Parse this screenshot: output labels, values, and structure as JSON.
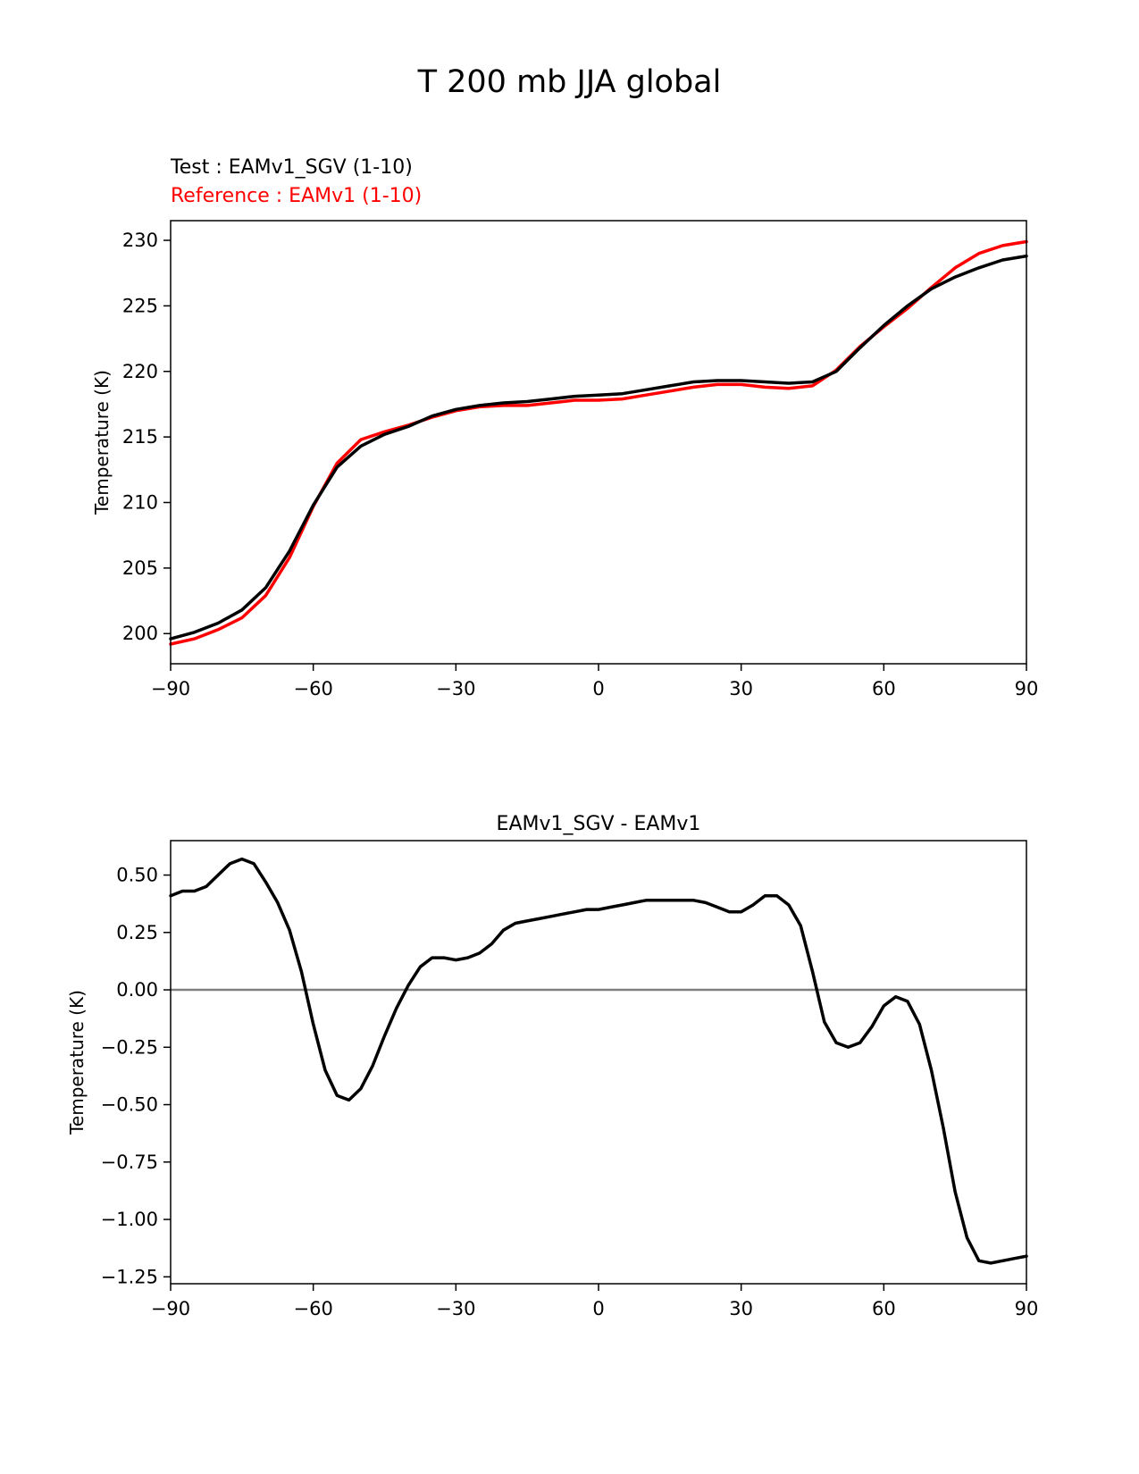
{
  "figure": {
    "title": "T 200 mb JJA global",
    "colors": {
      "test": "#000000",
      "reference": "#ff0000",
      "zero_line": "#808080",
      "axes": "#000000"
    }
  },
  "chart_data": [
    {
      "type": "line",
      "legend": {
        "test": "Test : EAMv1_SGV (1-10)",
        "reference": "Reference : EAMv1 (1-10)"
      },
      "title": "",
      "xlabel": "",
      "ylabel": "Temperature (K)",
      "xlim": [
        -90,
        90
      ],
      "ylim": [
        197.7,
        231.5
      ],
      "xticks": [
        -90,
        -60,
        -30,
        0,
        30,
        60,
        90
      ],
      "xtick_labels": [
        "−90",
        "−60",
        "−30",
        "0",
        "30",
        "60",
        "90"
      ],
      "yticks": [
        200,
        205,
        210,
        215,
        220,
        225,
        230
      ],
      "ytick_labels": [
        "200",
        "205",
        "210",
        "215",
        "220",
        "225",
        "230"
      ],
      "x": [
        -90,
        -85,
        -80,
        -75,
        -70,
        -65,
        -60,
        -55,
        -50,
        -45,
        -40,
        -35,
        -30,
        -25,
        -20,
        -15,
        -10,
        -5,
        0,
        5,
        10,
        15,
        20,
        25,
        30,
        35,
        40,
        45,
        50,
        55,
        60,
        65,
        70,
        75,
        80,
        85,
        90
      ],
      "series": [
        {
          "name": "Test : EAMv1_SGV (1-10)",
          "color": "#000000",
          "values": [
            199.6,
            200.1,
            200.8,
            201.8,
            203.5,
            206.3,
            209.8,
            212.7,
            214.3,
            215.2,
            215.8,
            216.6,
            217.1,
            217.4,
            217.6,
            217.7,
            217.9,
            218.1,
            218.2,
            218.3,
            218.6,
            218.9,
            219.2,
            219.3,
            219.3,
            219.2,
            219.1,
            219.2,
            220.0,
            221.8,
            223.5,
            225.0,
            226.3,
            227.2,
            227.9,
            228.5,
            228.8
          ]
        },
        {
          "name": "Reference : EAMv1 (1-10)",
          "color": "#ff0000",
          "values": [
            199.2,
            199.6,
            200.3,
            201.2,
            202.9,
            205.8,
            209.7,
            213.0,
            214.8,
            215.4,
            215.9,
            216.5,
            217.0,
            217.3,
            217.4,
            217.4,
            217.6,
            217.8,
            217.8,
            217.9,
            218.2,
            218.5,
            218.8,
            219.0,
            219.0,
            218.8,
            218.7,
            218.9,
            220.1,
            221.9,
            223.4,
            224.8,
            226.4,
            227.9,
            229.0,
            229.6,
            229.9
          ]
        }
      ]
    },
    {
      "type": "line",
      "title": "EAMv1_SGV - EAMv1",
      "xlabel": "",
      "ylabel": "Temperature (K)",
      "xlim": [
        -90,
        90
      ],
      "ylim": [
        -1.28,
        0.65
      ],
      "xticks": [
        -90,
        -60,
        -30,
        0,
        30,
        60,
        90
      ],
      "xtick_labels": [
        "−90",
        "−60",
        "−30",
        "0",
        "30",
        "60",
        "90"
      ],
      "yticks": [
        -1.25,
        -1.0,
        -0.75,
        -0.5,
        -0.25,
        0.0,
        0.25,
        0.5
      ],
      "ytick_labels": [
        "−1.25",
        "−1.00",
        "−0.75",
        "−0.50",
        "−0.25",
        "0.00",
        "0.25",
        "0.50"
      ],
      "zero_line": 0,
      "x": [
        -90,
        -87.5,
        -85,
        -82.5,
        -80,
        -77.5,
        -75,
        -72.5,
        -70,
        -67.5,
        -65,
        -62.5,
        -60,
        -57.5,
        -55,
        -52.5,
        -50,
        -47.5,
        -45,
        -42.5,
        -40,
        -37.5,
        -35,
        -32.5,
        -30,
        -27.5,
        -25,
        -22.5,
        -20,
        -17.5,
        -15,
        -12.5,
        -10,
        -7.5,
        -5,
        -2.5,
        0,
        2.5,
        5,
        7.5,
        10,
        12.5,
        15,
        17.5,
        20,
        22.5,
        25,
        27.5,
        30,
        32.5,
        35,
        37.5,
        40,
        42.5,
        45,
        47.5,
        50,
        52.5,
        55,
        57.5,
        60,
        62.5,
        65,
        67.5,
        70,
        72.5,
        75,
        77.5,
        80,
        82.5,
        85,
        87.5,
        90
      ],
      "series": [
        {
          "name": "EAMv1_SGV - EAMv1",
          "color": "#000000",
          "values": [
            0.41,
            0.43,
            0.43,
            0.45,
            0.5,
            0.55,
            0.57,
            0.55,
            0.47,
            0.38,
            0.26,
            0.08,
            -0.15,
            -0.35,
            -0.46,
            -0.48,
            -0.43,
            -0.33,
            -0.2,
            -0.08,
            0.02,
            0.1,
            0.14,
            0.14,
            0.13,
            0.14,
            0.16,
            0.2,
            0.26,
            0.29,
            0.3,
            0.31,
            0.32,
            0.33,
            0.34,
            0.35,
            0.35,
            0.36,
            0.37,
            0.38,
            0.39,
            0.39,
            0.39,
            0.39,
            0.39,
            0.38,
            0.36,
            0.34,
            0.34,
            0.37,
            0.41,
            0.41,
            0.37,
            0.28,
            0.08,
            -0.14,
            -0.23,
            -0.25,
            -0.23,
            -0.16,
            -0.07,
            -0.03,
            -0.05,
            -0.15,
            -0.35,
            -0.6,
            -0.88,
            -1.08,
            -1.18,
            -1.19,
            -1.18,
            -1.17,
            -1.16
          ]
        }
      ]
    }
  ]
}
